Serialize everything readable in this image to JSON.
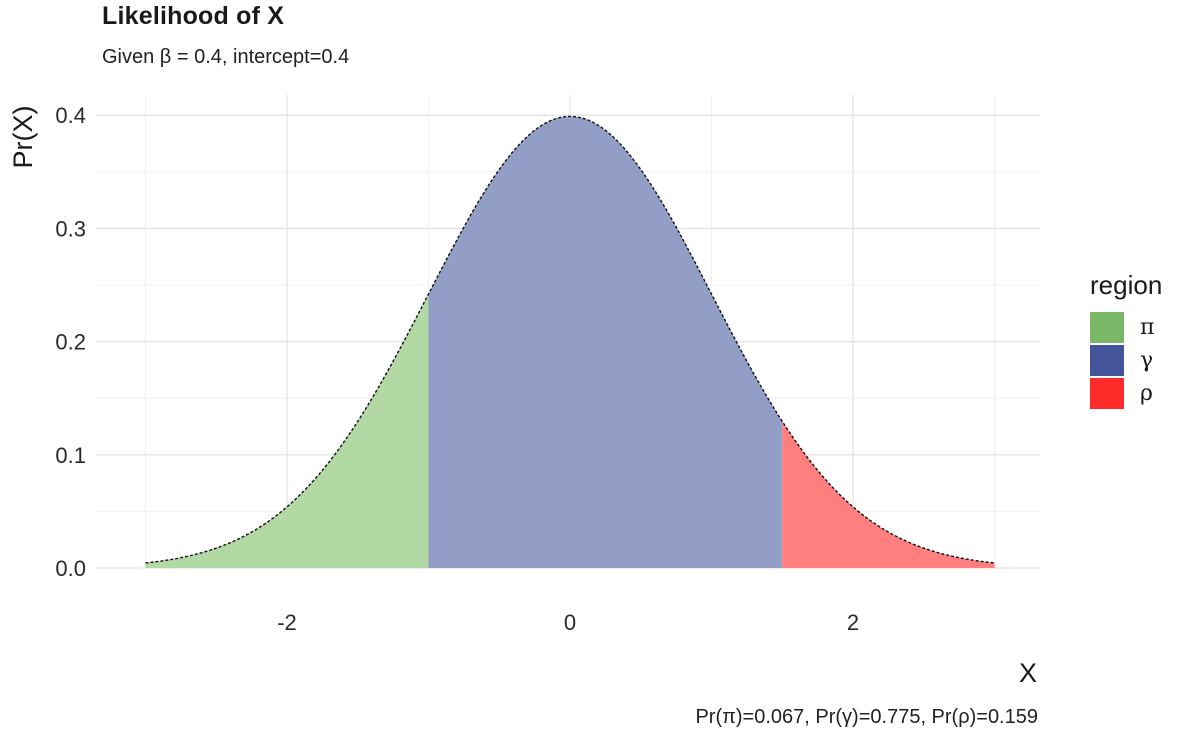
{
  "chart_data": {
    "type": "area",
    "title": "Likelihood of X",
    "subtitle": "Given β = 0.4, intercept=0.4",
    "caption": "Pr(π)=0.067, Pr(γ)=0.775, Pr(ρ)=0.159",
    "xlabel": "X",
    "ylabel": "Pr(X)",
    "xlim": [
      -3,
      3
    ],
    "ylim": [
      0,
      0.4
    ],
    "x_ticks": [
      -2,
      0,
      2
    ],
    "x_tick_labels": [
      "-2",
      "0",
      "2"
    ],
    "y_ticks": [
      0.0,
      0.1,
      0.2,
      0.3,
      0.4
    ],
    "y_tick_labels": [
      "0.0",
      "0.1",
      "0.2",
      "0.3",
      "0.4"
    ],
    "grid": true,
    "curve": "standard normal density, dashed outline",
    "regions": [
      {
        "name": "π",
        "x_range": [
          -3,
          -1
        ],
        "probability": 0.067,
        "fill": "#b2d8a3",
        "legend_color": "#7ab868"
      },
      {
        "name": "γ",
        "x_range": [
          -1,
          1.5
        ],
        "probability": 0.775,
        "fill": "#929ec5",
        "legend_color": "#43549a"
      },
      {
        "name": "ρ",
        "x_range": [
          1.5,
          3
        ],
        "probability": 0.159,
        "fill": "#ff7f7f",
        "legend_color": "#ff2a2a"
      }
    ],
    "legend": {
      "title": "region",
      "position": "right"
    }
  }
}
